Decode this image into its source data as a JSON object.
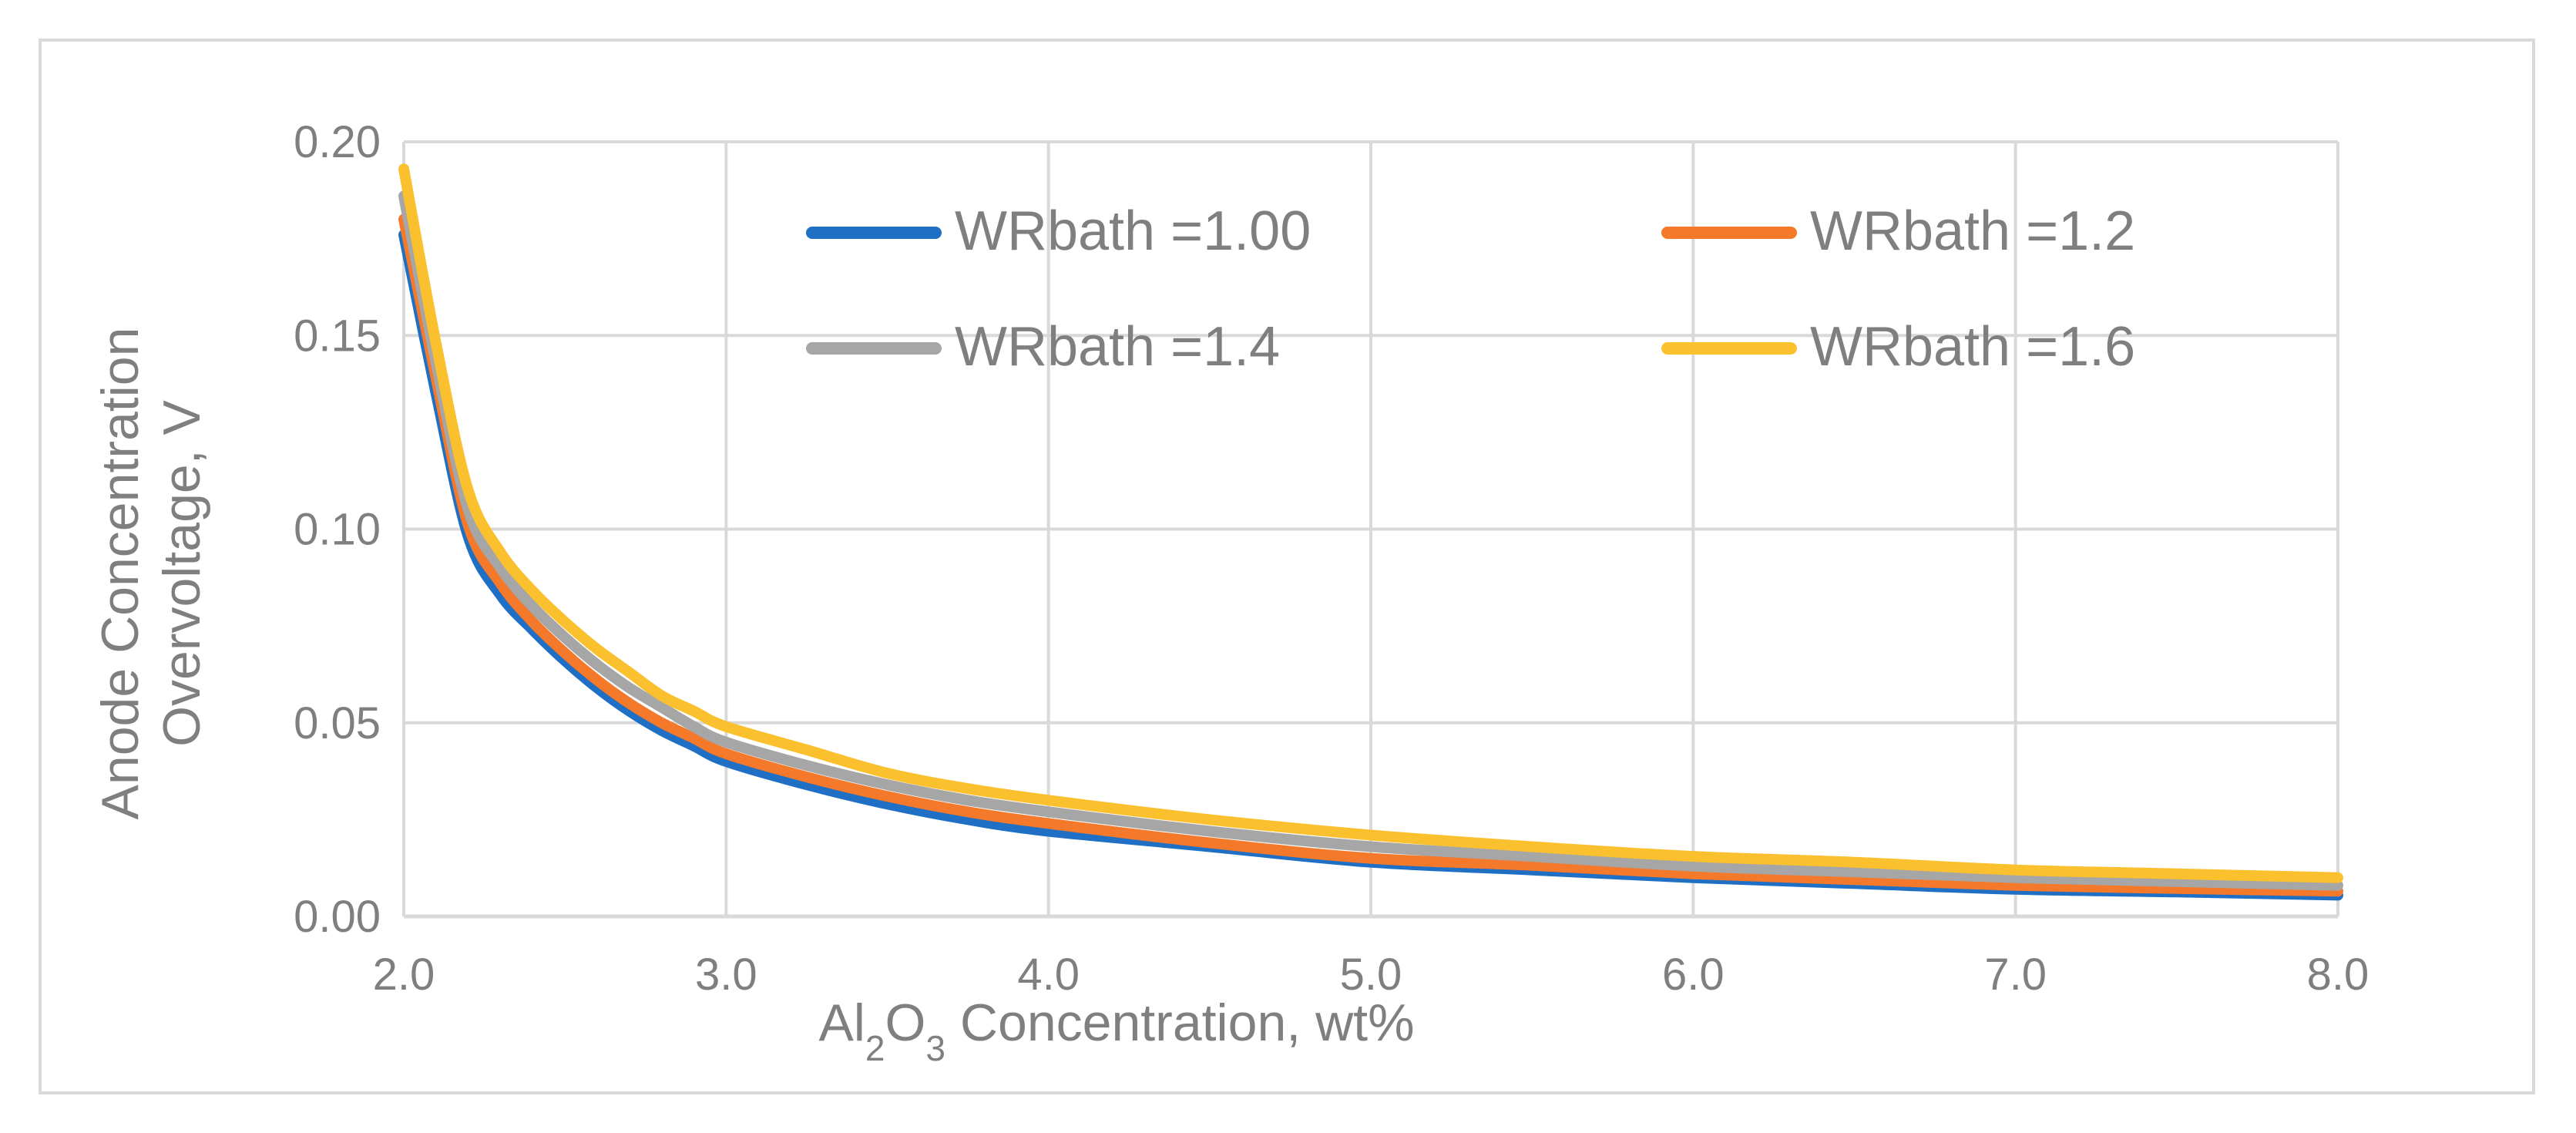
{
  "chart_data": {
    "type": "line",
    "title": "",
    "xlabel": {
      "prefix": "Al",
      "sub1": "2",
      "mid": "O",
      "sub2": "3",
      "suffix": " Concentration, wt%"
    },
    "ylabel_lines": [
      "Anode Concentration",
      "Overvoltage, V"
    ],
    "xlim": [
      2.0,
      8.0
    ],
    "ylim": [
      0.0,
      0.2
    ],
    "xticks": [
      2.0,
      3.0,
      4.0,
      5.0,
      6.0,
      7.0,
      8.0
    ],
    "yticks": [
      0.0,
      0.05,
      0.1,
      0.15,
      0.2
    ],
    "xtick_labels": [
      "2.0",
      "3.0",
      "4.0",
      "5.0",
      "6.0",
      "7.0",
      "8.0"
    ],
    "ytick_labels": [
      "0.00",
      "0.05",
      "0.10",
      "0.15",
      "0.20"
    ],
    "grid": true,
    "legend_position": "top, inside plot area, 2 columns",
    "x": [
      2.0,
      2.1,
      2.2,
      2.3,
      2.4,
      2.5,
      2.6,
      2.7,
      2.8,
      2.9,
      3.0,
      3.25,
      3.5,
      3.75,
      4.0,
      4.5,
      5.0,
      5.5,
      6.0,
      6.5,
      7.0,
      7.5,
      8.0
    ],
    "series": [
      {
        "name": "WRbath =1.00",
        "color": "#1f6fc5",
        "values": [
          0.176,
          0.135,
          0.098,
          0.083,
          0.074,
          0.066,
          0.059,
          0.053,
          0.048,
          0.044,
          0.04,
          0.034,
          0.029,
          0.025,
          0.022,
          0.018,
          0.014,
          0.012,
          0.01,
          0.0085,
          0.007,
          0.0063,
          0.0055
        ]
      },
      {
        "name": "WRbath =1.2",
        "color": "#f4792a",
        "values": [
          0.18,
          0.139,
          0.101,
          0.086,
          0.076,
          0.068,
          0.061,
          0.055,
          0.05,
          0.046,
          0.042,
          0.036,
          0.031,
          0.027,
          0.024,
          0.019,
          0.015,
          0.0132,
          0.011,
          0.0095,
          0.008,
          0.0072,
          0.0065
        ]
      },
      {
        "name": "WRbath =1.4",
        "color": "#a6a6a6",
        "values": [
          0.186,
          0.143,
          0.105,
          0.09,
          0.08,
          0.072,
          0.065,
          0.059,
          0.054,
          0.049,
          0.045,
          0.039,
          0.034,
          0.03,
          0.027,
          0.022,
          0.018,
          0.0155,
          0.013,
          0.0115,
          0.01,
          0.009,
          0.008
        ]
      },
      {
        "name": "WRbath =1.6",
        "color": "#fbc02d",
        "values": [
          0.193,
          0.148,
          0.11,
          0.094,
          0.084,
          0.076,
          0.069,
          0.063,
          0.057,
          0.053,
          0.049,
          0.043,
          0.037,
          0.033,
          0.03,
          0.025,
          0.021,
          0.018,
          0.0155,
          0.014,
          0.012,
          0.011,
          0.01
        ]
      }
    ]
  },
  "colors": {
    "grid": "#d9d9d9",
    "text": "#7f7f7f",
    "frame": "#d9d9d9"
  }
}
